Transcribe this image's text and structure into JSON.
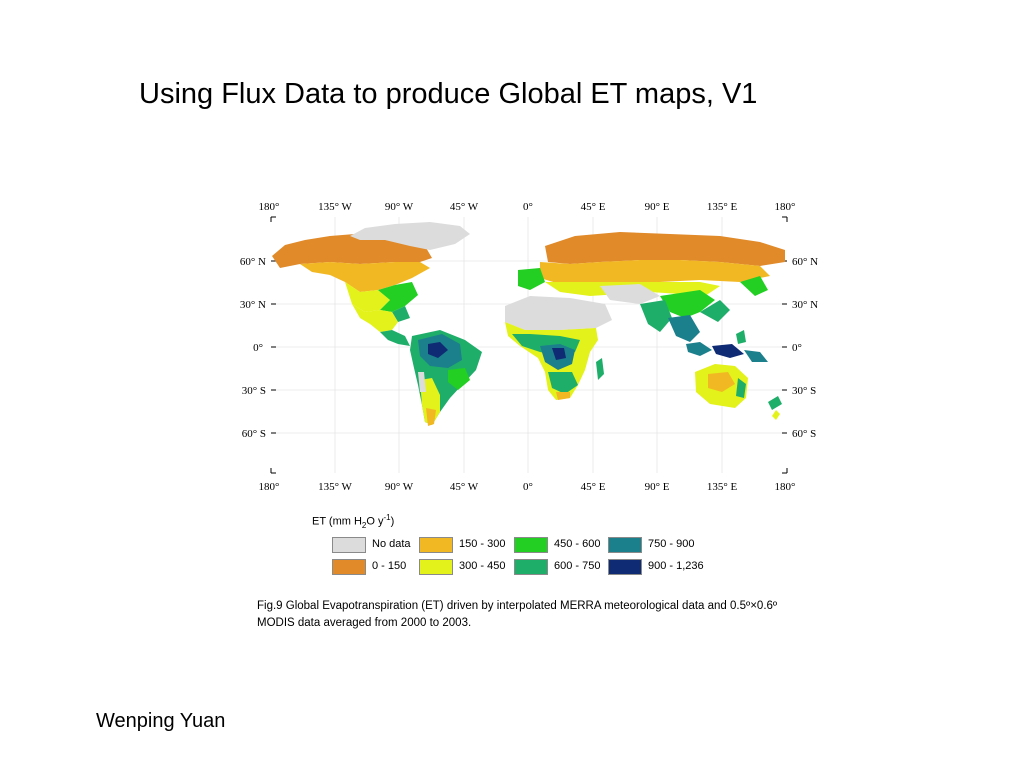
{
  "slide": {
    "title": "Using Flux Data to produce Global ET maps, V1",
    "author": "Wenping Yuan"
  },
  "map": {
    "lon_labels": [
      "180°",
      "135° W",
      "90° W",
      "45° W",
      "0°",
      "45° E",
      "90° E",
      "135° E",
      "180°"
    ],
    "lat_labels_left": [
      "60° N",
      "30° N",
      "0°",
      "30° S",
      "60° S"
    ],
    "lat_labels_right": [
      "60° N",
      "30° N",
      "0°",
      "30° S",
      "60° S"
    ],
    "grid": true,
    "colors": {
      "no_data": "#dcdcdc",
      "c0_150": "#e08a2a",
      "c150_300": "#f2b824",
      "c300_450": "#e3f21a",
      "c450_600": "#22cf22",
      "c600_750": "#1fae6a",
      "c750_900": "#1c7f8c",
      "c900_1236": "#0e2b74"
    }
  },
  "legend": {
    "title_prefix": "ET (mm H",
    "title_sub": "2",
    "title_mid": "O y",
    "title_sup": "-1",
    "title_suffix": ")",
    "items": [
      {
        "label": "No data",
        "color": "#dcdcdc"
      },
      {
        "label": "0 - 150",
        "color": "#e08a2a"
      },
      {
        "label": "150 - 300",
        "color": "#f2b824"
      },
      {
        "label": "300 - 450",
        "color": "#e3f21a"
      },
      {
        "label": "450 - 600",
        "color": "#22cf22"
      },
      {
        "label": "600 - 750",
        "color": "#1fae6a"
      },
      {
        "label": "750 - 900",
        "color": "#1c7f8c"
      },
      {
        "label": "900 - 1,236",
        "color": "#0e2b74"
      }
    ]
  },
  "caption": "Fig.9 Global Evapotranspiration (ET) driven by interpolated MERRA meteorological data and 0.5º×0.6º MODIS data averaged from 2000 to 2003."
}
